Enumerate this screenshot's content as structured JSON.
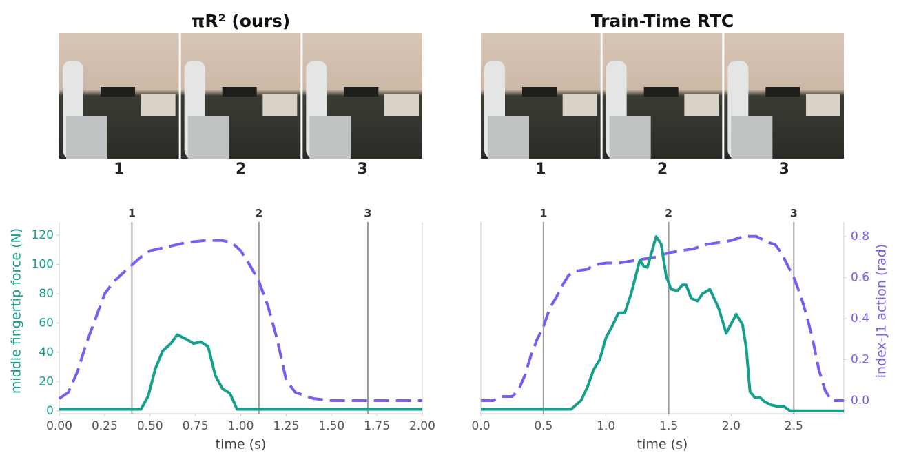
{
  "chart_data": [
    {
      "type": "line",
      "title": "πR² (ours)",
      "xlabel": "time (s)",
      "ylabel": "middle fingertip force (N)",
      "ylabel_color": "#16a08c",
      "xlim": [
        0,
        2
      ],
      "xticks": [
        {
          "value": 0,
          "label": "0.00"
        },
        0.25,
        {
          "value": 0.5,
          "label": "0.50"
        },
        0.75,
        {
          "value": 1,
          "label": "1.00"
        },
        1.25,
        {
          "value": 1.5,
          "label": "1.50"
        },
        1.75,
        {
          "value": 2,
          "label": "2.00"
        }
      ],
      "ylim": [
        -2,
        129
      ],
      "yticks": [
        0,
        20,
        40,
        60,
        80,
        100,
        120
      ],
      "y2lim": [
        -0.064,
        0.87
      ],
      "events": [
        {
          "value": 0.4,
          "label": "1"
        },
        {
          "value": 1.1,
          "label": "2"
        },
        {
          "value": 1.7,
          "label": "3"
        }
      ],
      "series": [
        {
          "color": "#16a08c",
          "axis": "y",
          "dash": false,
          "x": [
            0,
            0.45,
            0.49,
            0.53,
            0.57,
            0.615,
            0.65,
            0.7,
            0.74,
            0.78,
            0.82,
            0.86,
            0.9,
            0.94,
            0.98,
            2.0
          ],
          "values": [
            1,
            1,
            10,
            29,
            41,
            46,
            52,
            49,
            46,
            47,
            44,
            24,
            15,
            12,
            1,
            1
          ]
        },
        {
          "color": "#7b5cf0",
          "axis": "y2",
          "dash": true,
          "x": [
            0,
            0.05,
            0.1,
            0.15,
            0.2,
            0.25,
            0.3,
            0.35,
            0.4,
            0.45,
            0.5,
            0.6,
            0.7,
            0.8,
            0.9,
            0.95,
            1.0,
            1.05,
            1.1,
            1.15,
            1.2,
            1.25,
            1.3,
            1.4,
            1.5,
            2.0
          ],
          "values": [
            0.01,
            0.04,
            0.14,
            0.28,
            0.4,
            0.52,
            0.58,
            0.62,
            0.66,
            0.7,
            0.73,
            0.75,
            0.77,
            0.78,
            0.78,
            0.77,
            0.73,
            0.66,
            0.58,
            0.46,
            0.3,
            0.1,
            0.04,
            0.01,
            0.0,
            0.0
          ]
        }
      ]
    },
    {
      "type": "line",
      "title": "Train-Time RTC",
      "xlabel": "time (s)",
      "y2label": "index-J1 action (rad)",
      "y2label_color": "#7b5cf0",
      "xlim": [
        0,
        2.9
      ],
      "xticks": [
        {
          "value": 0,
          "label": "0.0"
        },
        0.5,
        {
          "value": 1,
          "label": "1.0"
        },
        1.5,
        {
          "value": 2,
          "label": "2.0"
        },
        2.5
      ],
      "ylim": [
        -2,
        129
      ],
      "y2lim": [
        -0.064,
        0.87
      ],
      "y2ticks": [
        {
          "value": 0,
          "label": "0.0"
        },
        0.2,
        0.4,
        0.6,
        0.8
      ],
      "events": [
        {
          "value": 0.5,
          "label": "1"
        },
        {
          "value": 1.5,
          "label": "2"
        },
        {
          "value": 2.5,
          "label": "3"
        }
      ],
      "series": [
        {
          "color": "#16a08c",
          "axis": "y",
          "dash": false,
          "x": [
            0,
            0.72,
            0.8,
            0.85,
            0.9,
            0.95,
            1.0,
            1.05,
            1.1,
            1.15,
            1.2,
            1.27,
            1.3,
            1.33,
            1.4,
            1.44,
            1.48,
            1.52,
            1.57,
            1.61,
            1.64,
            1.68,
            1.73,
            1.77,
            1.83,
            1.9,
            1.96,
            2.04,
            2.09,
            2.12,
            2.15,
            2.19,
            2.23,
            2.27,
            2.32,
            2.37,
            2.42,
            2.47,
            2.9
          ],
          "values": [
            1,
            1,
            7,
            16,
            28,
            35,
            50,
            58,
            67,
            67,
            80,
            103,
            99,
            98,
            119,
            114,
            92,
            83,
            82,
            86,
            86,
            77,
            75,
            80,
            83,
            70,
            53,
            66,
            59,
            43,
            13,
            9,
            9,
            6,
            4,
            3,
            3,
            0,
            0
          ]
        },
        {
          "color": "#7b5cf0",
          "axis": "y2",
          "dash": true,
          "x": [
            0,
            0.1,
            0.15,
            0.25,
            0.3,
            0.35,
            0.4,
            0.45,
            0.5,
            0.55,
            0.6,
            0.65,
            0.7,
            0.75,
            0.85,
            0.9,
            1.0,
            1.1,
            1.2,
            1.3,
            1.4,
            1.5,
            1.6,
            1.7,
            1.8,
            1.9,
            2.0,
            2.1,
            2.2,
            2.3,
            2.35,
            2.4,
            2.45,
            2.5,
            2.55,
            2.6,
            2.65,
            2.7,
            2.75,
            2.8,
            2.9
          ],
          "values": [
            0.0,
            0.0,
            0.02,
            0.02,
            0.05,
            0.12,
            0.22,
            0.3,
            0.36,
            0.45,
            0.5,
            0.56,
            0.61,
            0.63,
            0.64,
            0.66,
            0.67,
            0.67,
            0.68,
            0.69,
            0.7,
            0.72,
            0.73,
            0.74,
            0.76,
            0.77,
            0.78,
            0.8,
            0.8,
            0.77,
            0.76,
            0.72,
            0.66,
            0.6,
            0.52,
            0.42,
            0.3,
            0.15,
            0.05,
            0.0,
            0.0
          ]
        }
      ]
    }
  ]
}
